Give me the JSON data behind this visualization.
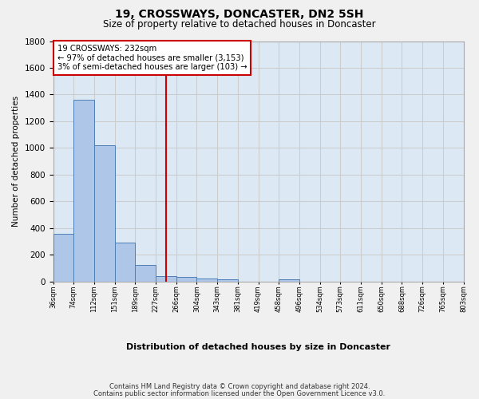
{
  "title": "19, CROSSWAYS, DONCASTER, DN2 5SH",
  "subtitle": "Size of property relative to detached houses in Doncaster",
  "xlabel": "Distribution of detached houses by size in Doncaster",
  "ylabel": "Number of detached properties",
  "bar_values": [
    355,
    1360,
    1020,
    290,
    125,
    40,
    35,
    22,
    18,
    0,
    0,
    20,
    0,
    0,
    0,
    0,
    0,
    0,
    0,
    0
  ],
  "x_labels": [
    "36sqm",
    "74sqm",
    "112sqm",
    "151sqm",
    "189sqm",
    "227sqm",
    "266sqm",
    "304sqm",
    "343sqm",
    "381sqm",
    "419sqm",
    "458sqm",
    "496sqm",
    "534sqm",
    "573sqm",
    "611sqm",
    "650sqm",
    "688sqm",
    "726sqm",
    "765sqm",
    "803sqm"
  ],
  "bar_color": "#aec6e8",
  "bar_edge_color": "#4d7eb5",
  "vline_x": 5.5,
  "vline_color": "#cc0000",
  "annotation_line1": "19 CROSSWAYS: 232sqm",
  "annotation_line2": "← 97% of detached houses are smaller (3,153)",
  "annotation_line3": "3% of semi-detached houses are larger (103) →",
  "annotation_box_color": "#cc0000",
  "ylim": [
    0,
    1800
  ],
  "yticks": [
    0,
    200,
    400,
    600,
    800,
    1000,
    1200,
    1400,
    1600,
    1800
  ],
  "grid_color": "#cccccc",
  "bg_color": "#dce9f5",
  "fig_bg_color": "#f0f0f0",
  "footer1": "Contains HM Land Registry data © Crown copyright and database right 2024.",
  "footer2": "Contains public sector information licensed under the Open Government Licence v3.0."
}
